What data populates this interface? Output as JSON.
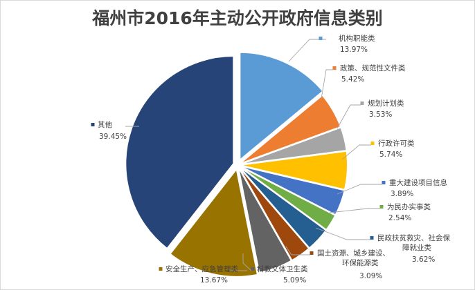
{
  "chart_data": {
    "type": "pie",
    "title": "福州市2016年主动公开政府信息类别",
    "slices": [
      {
        "name": "机构职能类",
        "value": 13.97,
        "label": "13.97%",
        "color": "#5b9bd5"
      },
      {
        "name": "政策、规范性文件类",
        "value": 5.42,
        "label": "5.42%",
        "color": "#ed7d31"
      },
      {
        "name": "规划计划类",
        "value": 3.53,
        "label": "3.53%",
        "color": "#a5a5a5"
      },
      {
        "name": "行政许可类",
        "value": 5.74,
        "label": "5.74%",
        "color": "#ffc000"
      },
      {
        "name": "重大建设项目信息",
        "value": 3.89,
        "label": "3.89%",
        "color": "#4472c4"
      },
      {
        "name": "为民办实事类",
        "value": 2.54,
        "label": "2.54%",
        "color": "#70ad47"
      },
      {
        "name": "民政扶贫救灾、社会保障就业类",
        "value": 3.62,
        "label": "3.62%",
        "color": "#255e91"
      },
      {
        "name": "国土资源、城乡建设、环保能源类",
        "value": 3.09,
        "label": "3.09%",
        "color": "#9e480e"
      },
      {
        "name": "科教文体卫生类",
        "value": 5.09,
        "label": "5.09%",
        "color": "#636363"
      },
      {
        "name": "安全生产、应急管理类",
        "value": 13.67,
        "label": "13.67%",
        "color": "#997300"
      },
      {
        "name": "其他",
        "value": 39.45,
        "label": "39.45%",
        "color": "#264478"
      }
    ],
    "legend": "none",
    "data_labels": "outside with leader lines"
  }
}
